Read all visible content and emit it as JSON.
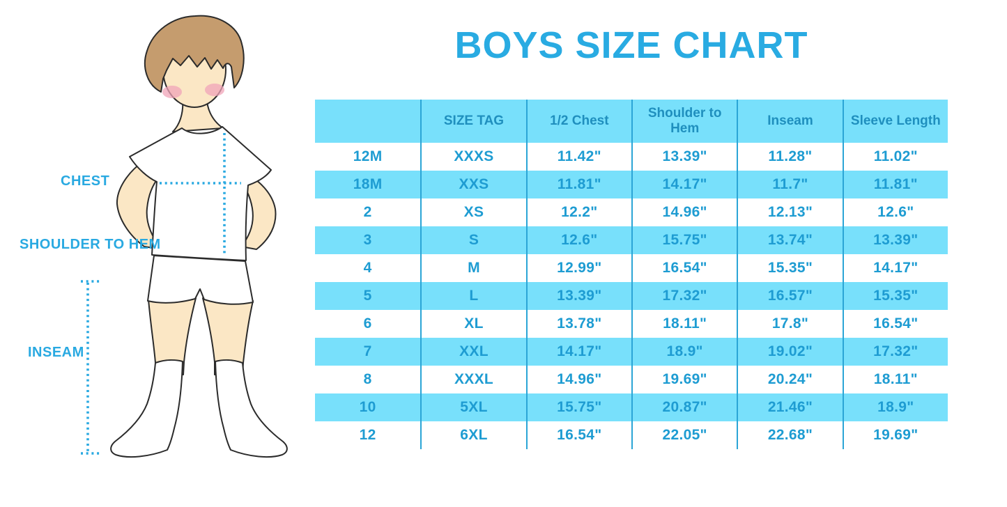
{
  "title": "BOYS SIZE CHART",
  "diagram": {
    "labels": {
      "chest": "CHEST",
      "shoulder_to_hem": "SHOULDER TO HEM",
      "inseam": "INSEAM"
    }
  },
  "chart_data": {
    "type": "table",
    "title": "BOYS SIZE CHART",
    "columns": [
      "",
      "SIZE TAG",
      "1/2 Chest",
      "Shoulder to Hem",
      "Inseam",
      "Sleeve Length"
    ],
    "rows": [
      [
        "12M",
        "XXXS",
        "11.42\"",
        "13.39\"",
        "11.28\"",
        "11.02\""
      ],
      [
        "18M",
        "XXS",
        "11.81\"",
        "14.17\"",
        "11.7\"",
        "11.81\""
      ],
      [
        "2",
        "XS",
        "12.2\"",
        "14.96\"",
        "12.13\"",
        "12.6\""
      ],
      [
        "3",
        "S",
        "12.6\"",
        "15.75\"",
        "13.74\"",
        "13.39\""
      ],
      [
        "4",
        "M",
        "12.99\"",
        "16.54\"",
        "15.35\"",
        "14.17\""
      ],
      [
        "5",
        "L",
        "13.39\"",
        "17.32\"",
        "16.57\"",
        "15.35\""
      ],
      [
        "6",
        "XL",
        "13.78\"",
        "18.11\"",
        "17.8\"",
        "16.54\""
      ],
      [
        "7",
        "XXL",
        "14.17\"",
        "18.9\"",
        "19.02\"",
        "17.32\""
      ],
      [
        "8",
        "XXXL",
        "14.96\"",
        "19.69\"",
        "20.24\"",
        "18.11\""
      ],
      [
        "10",
        "5XL",
        "15.75\"",
        "20.87\"",
        "21.46\"",
        "18.9\""
      ],
      [
        "12",
        "6XL",
        "16.54\"",
        "22.05\"",
        "22.68\"",
        "19.69\""
      ]
    ],
    "striped_row_indices": [
      1,
      3,
      5,
      7,
      9
    ],
    "layout": {
      "header_position": "top",
      "grid": "vertical-dividers-only"
    }
  },
  "colors": {
    "title_blue": "#29ABE2",
    "label_blue": "#29A9E1",
    "stripe_blue": "#78E0FB",
    "divider_blue": "#2BA5D6",
    "cell_text_blue": "#1E9CD2",
    "header_text_blue": "#1F8FBE",
    "dotted_line_blue": "#29A9E1",
    "skin": "#FBE7C5",
    "hair": "#C59C6E",
    "blush": "#F0A4B8",
    "outline": "#2B2B2B"
  }
}
